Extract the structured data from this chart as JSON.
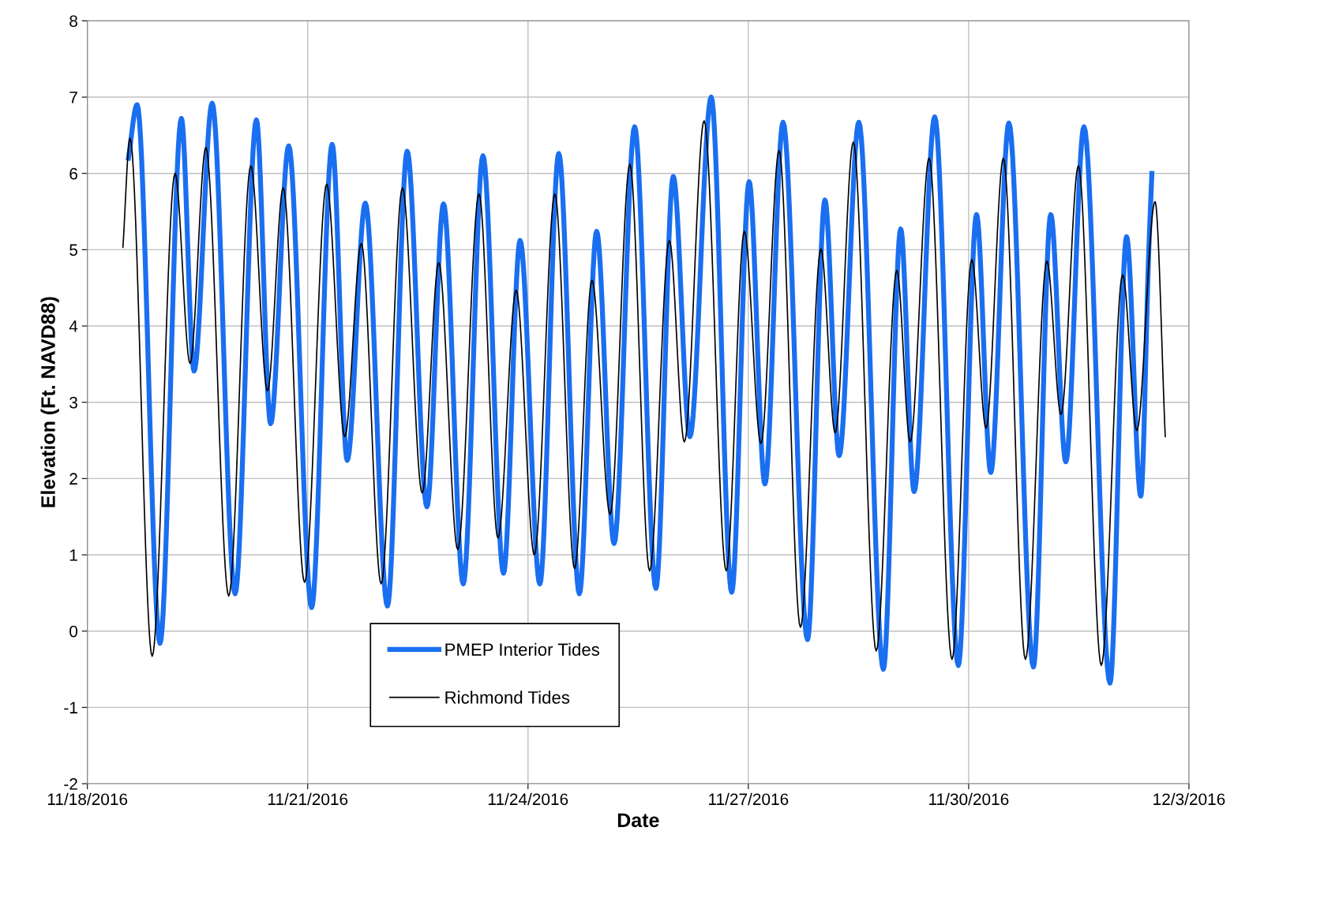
{
  "chart_data": {
    "type": "line",
    "xlabel": "Date",
    "ylabel": "Elevation (Ft. NAVD88)",
    "xlim": [
      "2016-11-18",
      "2016-12-03"
    ],
    "xticks": [
      {
        "value": "2016-11-18",
        "label": "11/18/2016"
      },
      {
        "value": "2016-11-21",
        "label": "11/21/2016"
      },
      {
        "value": "2016-11-24",
        "label": "11/24/2016"
      },
      {
        "value": "2016-11-27",
        "label": "11/27/2016"
      },
      {
        "value": "2016-11-30",
        "label": "11/30/2016"
      },
      {
        "value": "2016-12-03",
        "label": "12/3/2016"
      }
    ],
    "ylim": [
      -2,
      8
    ],
    "yticks": [
      -2,
      -1,
      0,
      1,
      2,
      3,
      4,
      5,
      6,
      7,
      8
    ],
    "grid": true,
    "legend": "bottom",
    "series": [
      {
        "name": "PMEP Interior Tides",
        "color": "#1a6ff0",
        "x": [
          "2016-11-18T13:25",
          "2016-11-18T16:15",
          "2016-11-18T23:44",
          "2016-11-19T06:43",
          "2016-11-19T10:51",
          "2016-11-19T16:47",
          "2016-11-20T00:16",
          "2016-11-20T07:14",
          "2016-11-20T11:53",
          "2016-11-20T17:48",
          "2016-11-21T01:17",
          "2016-11-21T08:00",
          "2016-11-21T12:55",
          "2016-11-21T18:50",
          "2016-11-22T02:04",
          "2016-11-22T08:31",
          "2016-11-22T14:58",
          "2016-11-22T20:23",
          "2016-11-23T02:50",
          "2016-11-23T09:17",
          "2016-11-23T16:00",
          "2016-11-23T21:25",
          "2016-11-24T03:52",
          "2016-11-24T10:03",
          "2016-11-24T16:47",
          "2016-11-24T22:26",
          "2016-11-25T04:08",
          "2016-11-25T10:51",
          "2016-11-25T17:48",
          "2016-11-25T23:28",
          "2016-11-26T04:54",
          "2016-11-26T11:53",
          "2016-11-26T18:34",
          "2016-11-27T00:16",
          "2016-11-27T05:25",
          "2016-11-27T11:21",
          "2016-11-27T19:21",
          "2016-11-28T01:02",
          "2016-11-28T05:41",
          "2016-11-28T12:07",
          "2016-11-28T20:08",
          "2016-11-29T01:48",
          "2016-11-29T06:11",
          "2016-11-29T12:55",
          "2016-11-29T20:38",
          "2016-11-30T02:35",
          "2016-11-30T07:14",
          "2016-11-30T13:09",
          "2016-11-30T21:10",
          "2016-12-01T02:50",
          "2016-12-01T07:45",
          "2016-12-01T13:41",
          "2016-12-01T22:12",
          "2016-12-02T03:37",
          "2016-12-02T08:15",
          "2016-12-02T10:51",
          "2016-12-02T11:53"
        ],
        "values": [
          6.2,
          6.9,
          -0.16,
          6.72,
          3.41,
          6.92,
          0.49,
          6.7,
          2.72,
          6.36,
          0.31,
          6.38,
          2.24,
          5.61,
          0.33,
          6.29,
          1.63,
          5.6,
          0.62,
          6.23,
          0.76,
          5.12,
          0.62,
          6.26,
          0.49,
          5.24,
          1.15,
          6.61,
          0.56,
          5.96,
          2.55,
          7.0,
          0.51,
          5.89,
          1.93,
          6.67,
          -0.11,
          5.65,
          2.3,
          6.67,
          -0.5,
          5.27,
          1.83,
          6.74,
          -0.45,
          5.46,
          2.08,
          6.66,
          -0.47,
          5.46,
          2.22,
          6.61,
          -0.68,
          5.17,
          1.77,
          4.96,
          6.0
        ]
      },
      {
        "name": "Richmond Tides",
        "color": "#000000",
        "x": [
          "2016-11-18T11:37",
          "2016-11-18T13:56",
          "2016-11-18T21:10",
          "2016-11-19T04:39",
          "2016-11-19T09:33",
          "2016-11-19T14:43",
          "2016-11-19T22:12",
          "2016-11-20T05:25",
          "2016-11-20T10:51",
          "2016-11-20T16:00",
          "2016-11-20T22:58",
          "2016-11-21T06:12",
          "2016-11-21T12:07",
          "2016-11-21T17:32",
          "2016-11-22T00:00",
          "2016-11-22T06:58",
          "2016-11-22T13:25",
          "2016-11-22T18:50",
          "2016-11-23T01:02",
          "2016-11-23T08:00",
          "2016-11-23T14:11",
          "2016-11-23T20:08",
          "2016-11-24T02:04",
          "2016-11-24T08:47",
          "2016-11-24T15:13",
          "2016-11-24T20:54",
          "2016-11-25T02:50",
          "2016-11-25T09:17",
          "2016-11-25T15:44",
          "2016-11-25T22:12",
          "2016-11-26T03:06",
          "2016-11-26T09:33",
          "2016-11-26T16:47",
          "2016-11-26T22:42",
          "2016-11-27T04:08",
          "2016-11-27T10:03",
          "2016-11-27T17:02",
          "2016-11-27T23:44",
          "2016-11-28T04:23",
          "2016-11-28T10:19",
          "2016-11-28T17:48",
          "2016-11-29T00:32",
          "2016-11-29T04:54",
          "2016-11-29T11:05",
          "2016-11-29T18:34",
          "2016-11-30T01:02",
          "2016-11-30T05:41",
          "2016-11-30T11:21",
          "2016-11-30T18:34",
          "2016-12-01T01:34",
          "2016-12-01T06:11",
          "2016-12-01T11:53",
          "2016-12-01T19:21",
          "2016-12-02T02:20",
          "2016-12-02T06:58",
          "2016-12-02T12:55",
          "2016-12-02T16:15"
        ],
        "values": [
          5.03,
          6.46,
          -0.33,
          6.0,
          3.51,
          6.34,
          0.46,
          6.1,
          3.15,
          5.81,
          0.64,
          5.86,
          2.55,
          5.08,
          0.62,
          5.81,
          1.81,
          4.83,
          1.07,
          5.73,
          1.22,
          4.47,
          1.0,
          5.73,
          0.82,
          4.6,
          1.53,
          6.12,
          0.79,
          5.12,
          2.48,
          6.69,
          0.79,
          5.24,
          2.46,
          6.3,
          0.05,
          5.01,
          2.6,
          6.41,
          -0.26,
          4.73,
          2.48,
          6.2,
          -0.37,
          4.87,
          2.66,
          6.2,
          -0.37,
          4.85,
          2.84,
          6.1,
          -0.45,
          4.67,
          2.63,
          5.63,
          2.55
        ]
      }
    ]
  }
}
